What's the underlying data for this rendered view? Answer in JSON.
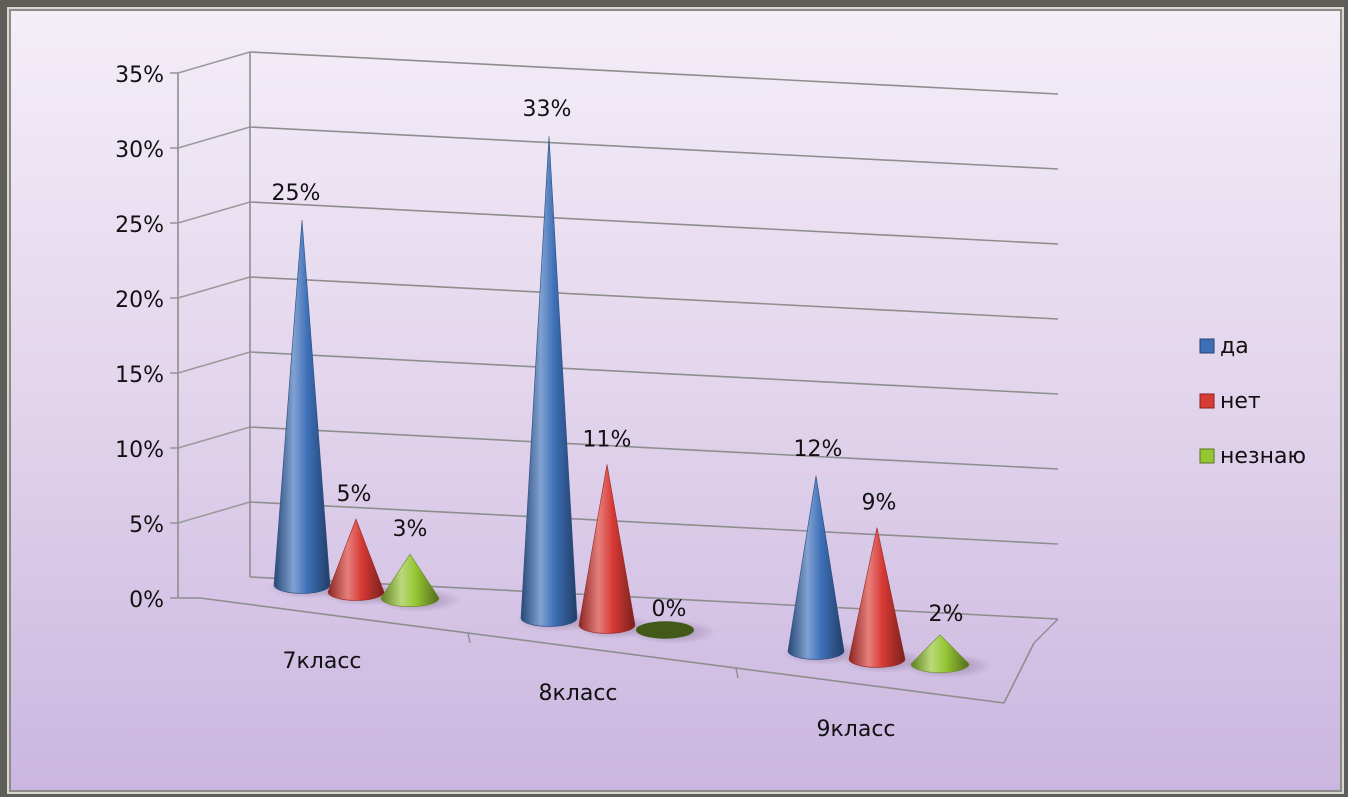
{
  "chart_data": {
    "type": "bar",
    "shape": "cone",
    "categories": [
      "7класс",
      "8класс",
      "9класс"
    ],
    "series": [
      {
        "name": "да",
        "values": [
          25,
          33,
          12
        ],
        "labels": [
          "25%",
          "33%",
          "12%"
        ]
      },
      {
        "name": "нет",
        "values": [
          5,
          11,
          9
        ],
        "labels": [
          "5%",
          "11%",
          "9%"
        ]
      },
      {
        "name": "незнаю",
        "values": [
          3,
          0,
          2
        ],
        "labels": [
          "3%",
          "0%",
          "2%"
        ]
      }
    ],
    "ylim": [
      0,
      35
    ],
    "yticks": [
      "0%",
      "5%",
      "10%",
      "15%",
      "20%",
      "25%",
      "30%",
      "35%"
    ],
    "grid": true,
    "legend": "right",
    "colors": {
      "да": "#3d6fb8",
      "нет": "#d83a35",
      "незнаю": "#95c534"
    }
  }
}
